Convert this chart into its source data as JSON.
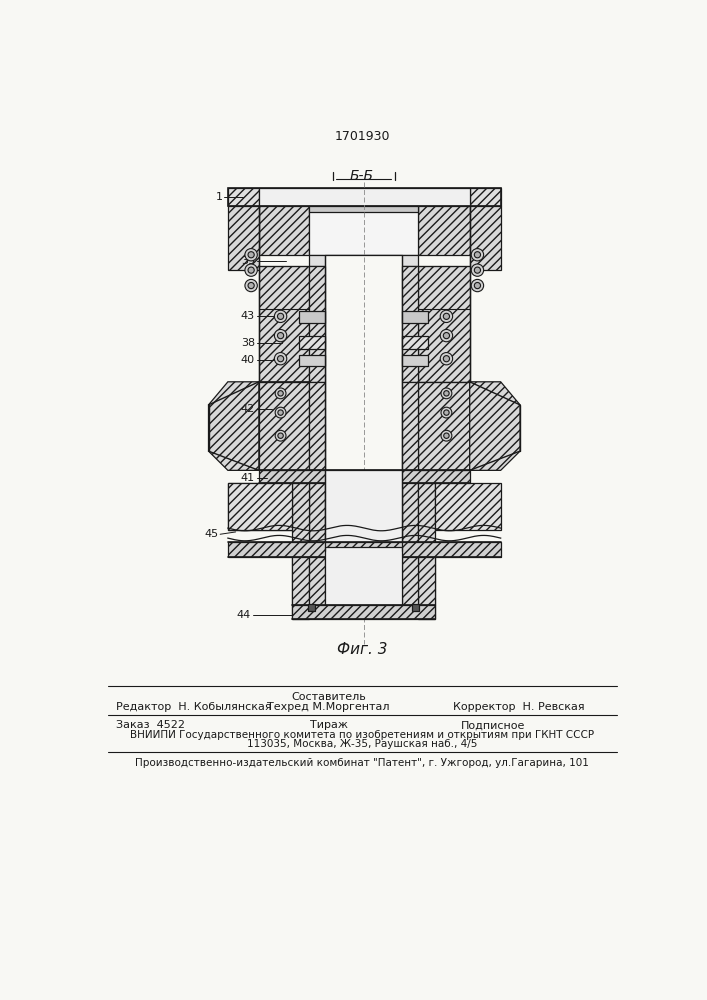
{
  "patent_number": "1701930",
  "figure_label": "Фиг. 3",
  "section_label": "Б-Б",
  "bg": "#f8f8f4",
  "lc": "#1a1a1a",
  "footer": {
    "sestavitel": "Составитель",
    "line1_col1": "Редактор  Н. Кобылянская",
    "line1_col2": "Техред М.Моргентал",
    "line1_col3": "Корректор  Н. Ревская",
    "line2_col1": "Заказ  4522",
    "line2_col2": "Тираж",
    "line2_col3": "Подписное",
    "line3": "ВНИИПИ Государственного комитета по изобретениям и открытиям при ГКНТ СССР",
    "line4": "113035, Москва, Ж-35, Раушская наб., 4/5",
    "line5": "Производственно-издательский комбинат \"Патент\", г. Ужгород, ул.Гагарина, 101"
  }
}
